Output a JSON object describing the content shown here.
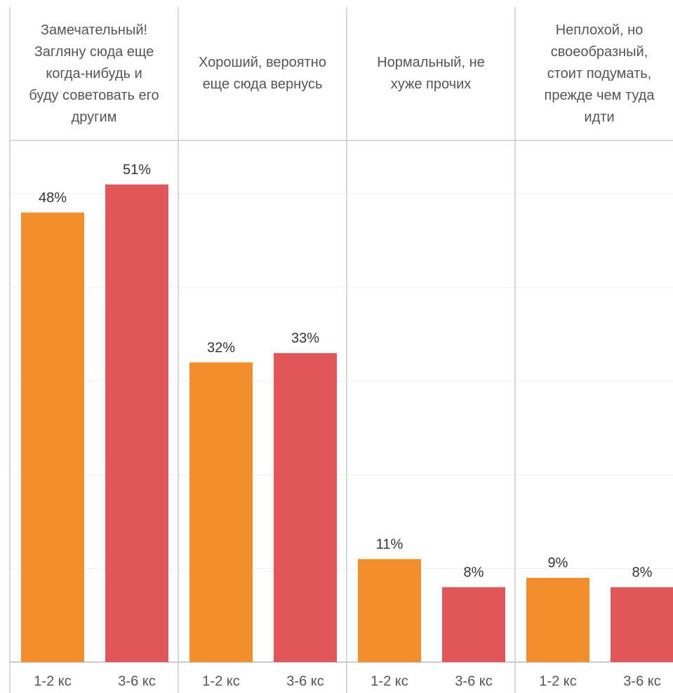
{
  "chart_data": {
    "type": "bar",
    "categories": [
      "Замечательный!\nЗагляну сюда еще\nкогда-нибудь и\nбуду советовать его\nдругим",
      "Хороший, вероятно\nеще сюда вернусь",
      "Нормальный, не\nхуже прочих",
      "Неплохой, но\nсвоеобразный,\nстоит подумать,\nпрежде чем туда\nидти"
    ],
    "series": [
      {
        "name": "1-2 кс",
        "color": "#f28e2b",
        "values": [
          48,
          32,
          11,
          9
        ],
        "value_labels": [
          "48%",
          "32%",
          "11%",
          "9%"
        ]
      },
      {
        "name": "3-6 кс",
        "color": "#e15759",
        "values": [
          51,
          33,
          8,
          8
        ],
        "value_labels": [
          "51%",
          "33%",
          "8%",
          "8%"
        ]
      }
    ],
    "ylim": [
      0,
      55.7
    ],
    "yticks": [
      0,
      10,
      20,
      30,
      40,
      50
    ],
    "grid": true
  }
}
